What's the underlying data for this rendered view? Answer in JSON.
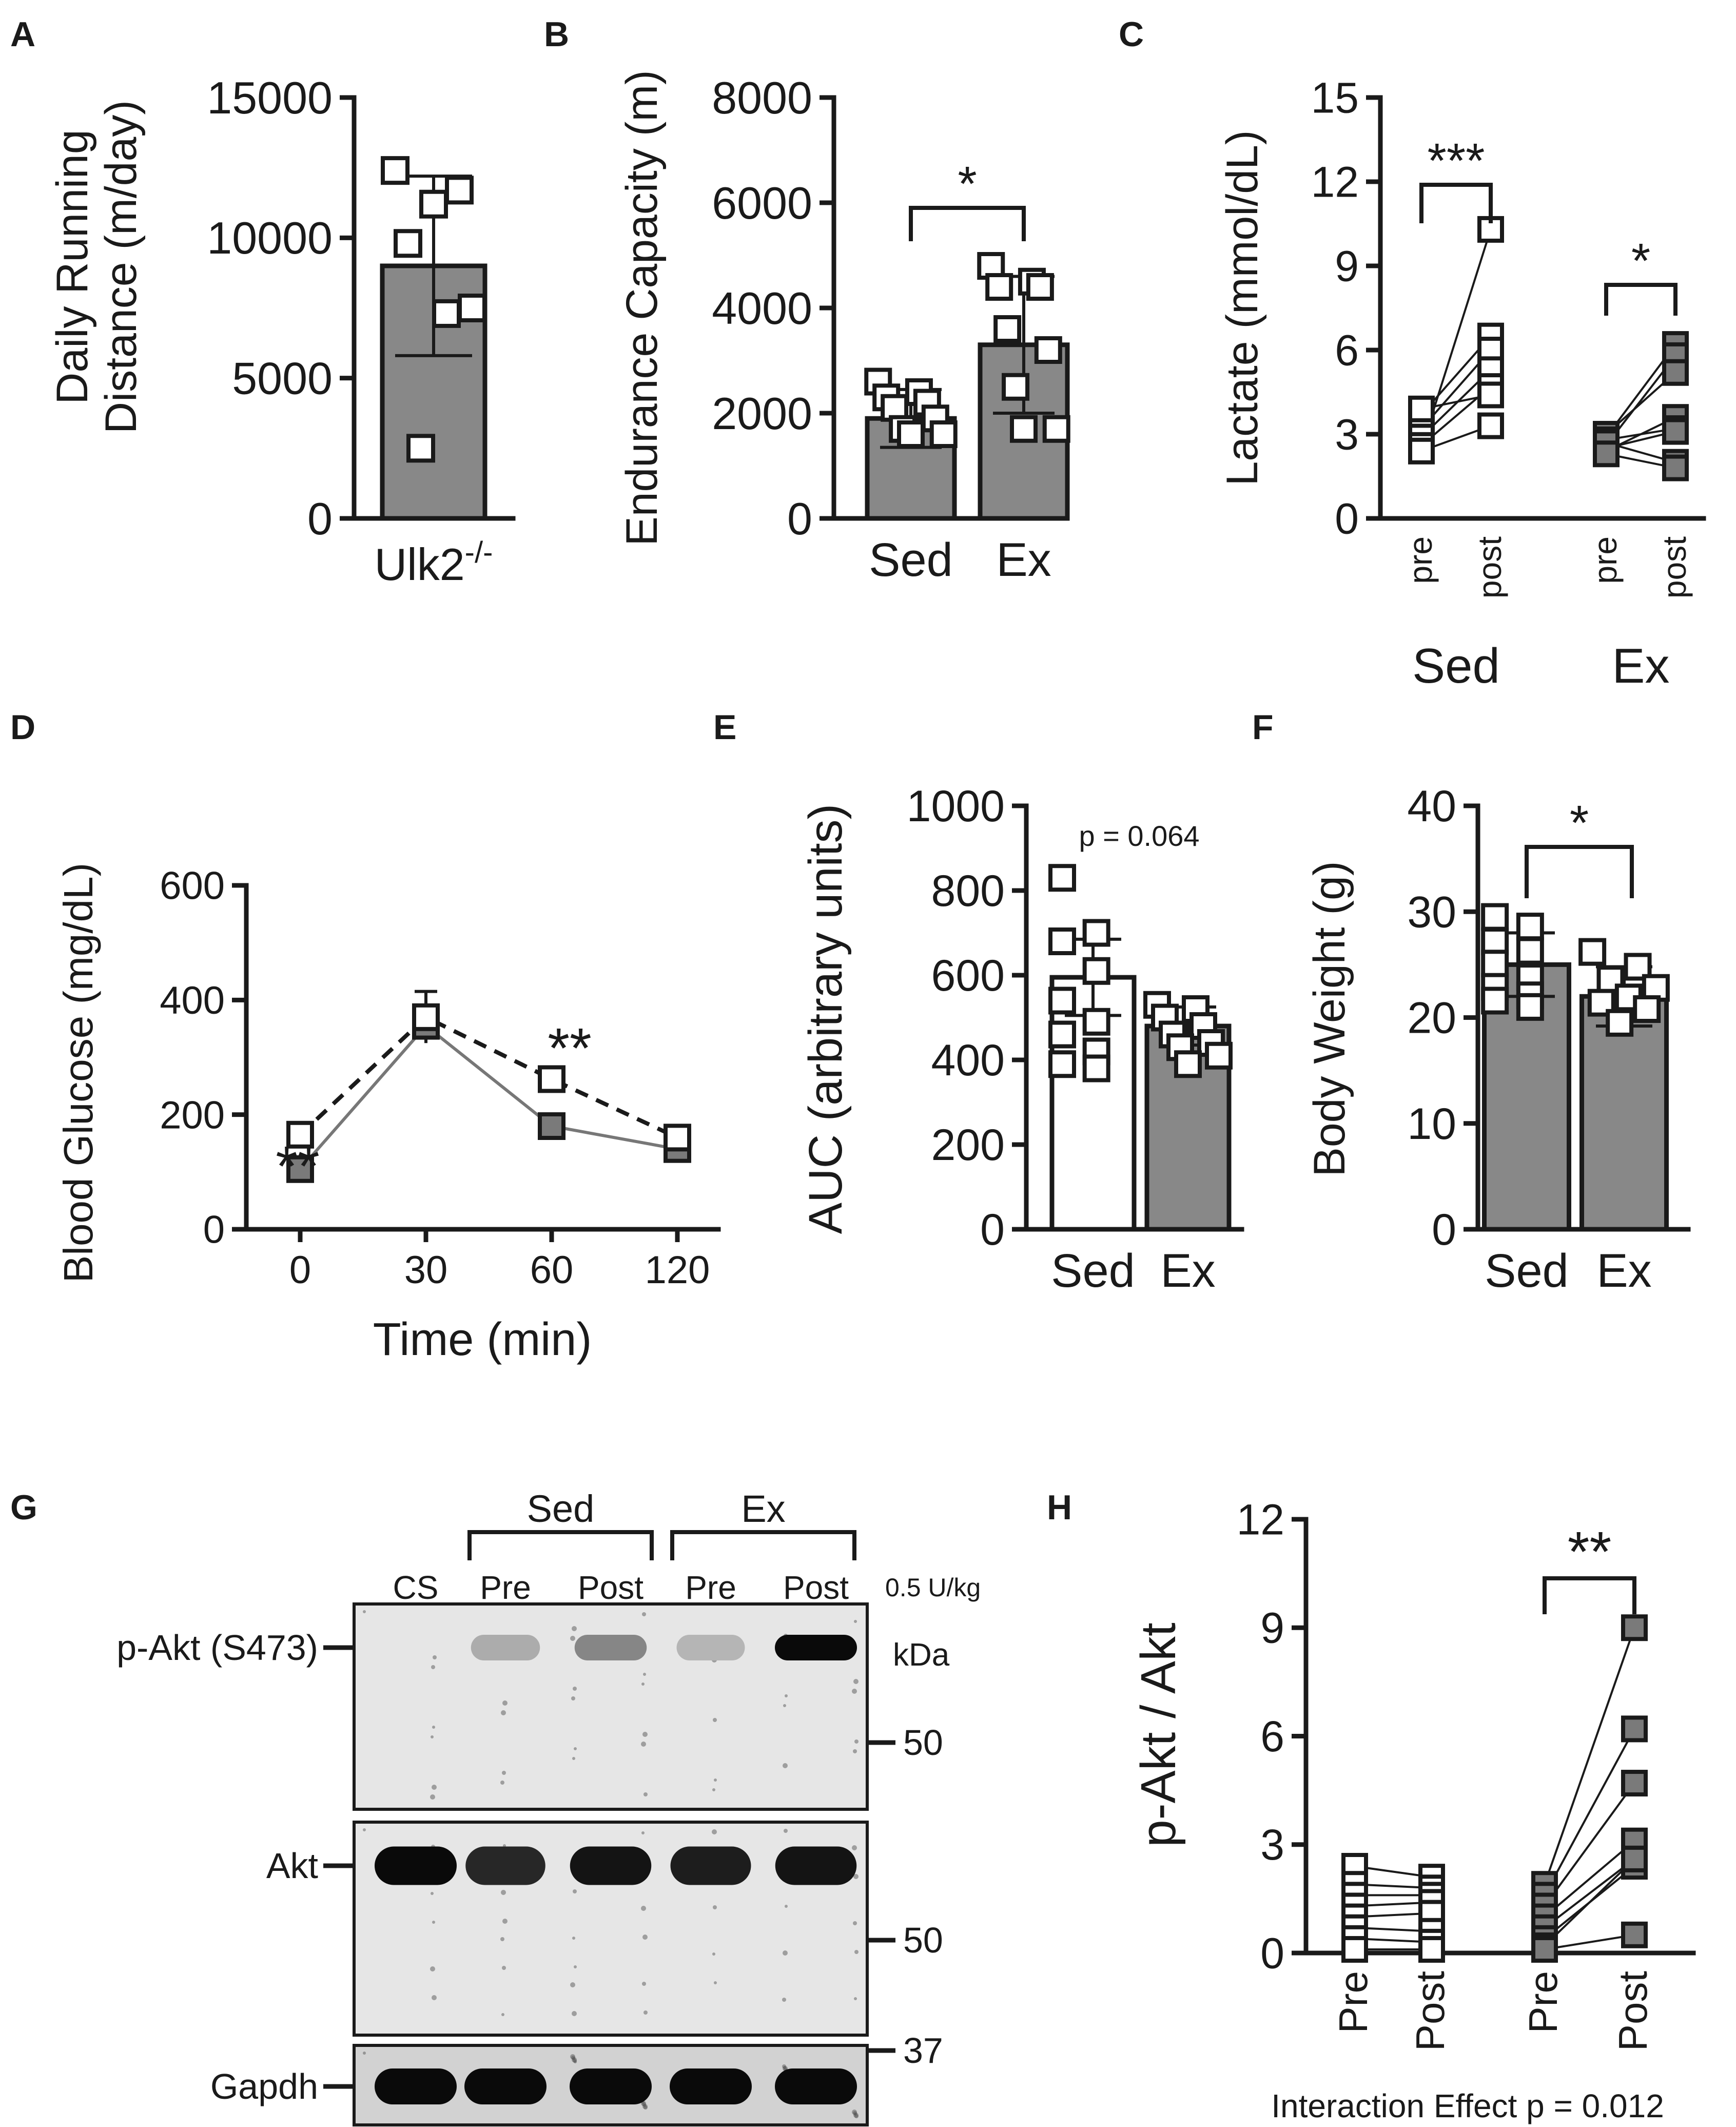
{
  "colors": {
    "ink": "#1a1a1a",
    "grey_bar": "#888888",
    "grey_point": "#7a7a7a",
    "white": "#ffffff",
    "blot_bg": "#d2d2d2"
  },
  "chart_data": [
    {
      "panel": "A",
      "type": "bar",
      "ylabel": "Daily Running Distance (m/day)",
      "ylabel_lines": [
        "Daily Running",
        "Distance (m/day)"
      ],
      "xlabel_base": "Ulk2",
      "xlabel_sup": "-/-",
      "ylim": [
        0,
        15000
      ],
      "yticks": [
        0,
        5000,
        10000,
        15000
      ],
      "categories": [
        "Ulk2-/-"
      ],
      "values": [
        9000
      ],
      "error": [
        3200
      ],
      "points": [
        [
          12400,
          11700,
          11200,
          9800,
          7500,
          7300,
          2500
        ]
      ]
    },
    {
      "panel": "B",
      "type": "bar",
      "ylabel": "Endurance Capacity (m)",
      "ylim": [
        0,
        8000
      ],
      "yticks": [
        0,
        2000,
        4000,
        6000,
        8000
      ],
      "categories": [
        "Sed",
        "Ex"
      ],
      "values": [
        1900,
        3300
      ],
      "error": [
        550,
        1300
      ],
      "points": [
        [
          2600,
          2400,
          2300,
          2200,
          2100,
          1900,
          1700,
          1600,
          1600
        ],
        [
          4800,
          4500,
          4400,
          4400,
          3600,
          3200,
          2500,
          1700,
          1700
        ]
      ],
      "significance": [
        {
          "pair": [
            "Sed",
            "Ex"
          ],
          "label": "*"
        }
      ]
    },
    {
      "panel": "C",
      "type": "scatter",
      "ylabel": "Lactate (mmol/dL)",
      "ylim": [
        0,
        15
      ],
      "yticks": [
        0,
        3,
        6,
        9,
        12,
        15
      ],
      "groups": [
        "Sed",
        "Ex"
      ],
      "timepoints": [
        "pre",
        "post"
      ],
      "pairs": {
        "Sed": [
          [
            2.5,
            10.3
          ],
          [
            3.7,
            6.5
          ],
          [
            3.2,
            6.0
          ],
          [
            2.9,
            5.3
          ],
          [
            2.6,
            4.7
          ],
          [
            3.9,
            4.4
          ],
          [
            2.4,
            3.3
          ]
        ],
        "Ex": [
          [
            2.9,
            6.2
          ],
          [
            2.6,
            5.8
          ],
          [
            3.0,
            5.2
          ],
          [
            2.4,
            3.6
          ],
          [
            2.8,
            3.2
          ],
          [
            2.5,
            3.1
          ],
          [
            2.7,
            2.0
          ],
          [
            2.3,
            1.8
          ]
        ]
      },
      "significance": [
        {
          "group": "Sed",
          "label": "***"
        },
        {
          "group": "Ex",
          "label": "*"
        }
      ]
    },
    {
      "panel": "D",
      "type": "line",
      "ylabel": "Blood Glucose (mg/dL)",
      "xlabel": "Time (min)",
      "ylim": [
        0,
        600
      ],
      "yticks": [
        0,
        200,
        400,
        600
      ],
      "categories": [
        "0",
        "30",
        "60",
        "120"
      ],
      "series": [
        {
          "style": "dashed",
          "fill": "white",
          "values": [
            165,
            370,
            262,
            160
          ],
          "error": [
            15,
            45,
            15,
            12
          ]
        },
        {
          "style": "solid",
          "fill": "grey",
          "values": [
            105,
            355,
            180,
            140
          ],
          "error": [
            15,
            30,
            12,
            12
          ]
        }
      ],
      "significance": [
        {
          "x": "0",
          "label": "**"
        },
        {
          "x": "60",
          "label": "**"
        }
      ]
    },
    {
      "panel": "E",
      "type": "bar",
      "ylabel": "AUC (arbitrary units)",
      "ylim": [
        0,
        1000
      ],
      "yticks": [
        0,
        200,
        400,
        600,
        800,
        1000
      ],
      "categories": [
        "Sed",
        "Ex"
      ],
      "values": [
        595,
        480
      ],
      "error": [
        90,
        45
      ],
      "points": [
        [
          830,
          700,
          680,
          610,
          540,
          490,
          460,
          420,
          390,
          380
        ],
        [
          530,
          520,
          500,
          480,
          460,
          440,
          430,
          410,
          390
        ]
      ],
      "annotation": "p = 0.064"
    },
    {
      "panel": "F",
      "type": "bar",
      "ylabel": "Body Weight (g)",
      "ylim": [
        0,
        40
      ],
      "yticks": [
        0,
        10,
        20,
        30,
        40
      ],
      "categories": [
        "Sed",
        "Ex"
      ],
      "values": [
        25,
        22
      ],
      "error": [
        3,
        2.8
      ],
      "points": [
        [
          29.5,
          28.6,
          27.2,
          26.3,
          25.1,
          23.8,
          22.9,
          22.1,
          21.6,
          21.0
        ],
        [
          26.2,
          24.8,
          23.6,
          22.8,
          21.9,
          21.4,
          20.8,
          19.5
        ]
      ],
      "significance": [
        {
          "pair": [
            "Sed",
            "Ex"
          ],
          "label": "*"
        }
      ]
    },
    {
      "panel": "H",
      "type": "scatter",
      "ylabel": "p-Akt / Akt",
      "ylim": [
        0,
        12
      ],
      "yticks": [
        0,
        3,
        6,
        9,
        12
      ],
      "groups": [
        "Sed",
        "Ex"
      ],
      "timepoints": [
        "Pre",
        "Post"
      ],
      "pairs": {
        "Sed": [
          [
            2.4,
            2.1
          ],
          [
            1.9,
            1.8
          ],
          [
            1.6,
            1.6
          ],
          [
            1.3,
            1.4
          ],
          [
            1.0,
            1.1
          ],
          [
            0.7,
            0.6
          ],
          [
            0.4,
            0.3
          ],
          [
            0.1,
            0.1
          ]
        ],
        "Ex": [
          [
            1.9,
            9.0
          ],
          [
            1.6,
            6.2
          ],
          [
            1.3,
            4.7
          ],
          [
            1.0,
            3.1
          ],
          [
            0.7,
            2.6
          ],
          [
            0.4,
            2.4
          ],
          [
            0.2,
            2.6
          ],
          [
            0.1,
            0.5
          ]
        ]
      },
      "significance": [
        {
          "group": "Ex",
          "label": "**"
        }
      ],
      "annotation": "Interaction Effect p = 0.012"
    }
  ],
  "panels": {
    "A": "A",
    "B": "B",
    "C": "C",
    "D": "D",
    "E": "E",
    "F": "F",
    "G": "G",
    "H": "H"
  },
  "blot": {
    "groups": [
      "Sed",
      "Ex"
    ],
    "lanes": [
      "CS",
      "Pre",
      "Post",
      "Pre",
      "Post"
    ],
    "dose": "0.5 U/kg",
    "kda_label": "kDa",
    "rows": [
      {
        "label": "p-Akt (S473)",
        "marker": "50",
        "intensity": [
          0.0,
          0.15,
          0.35,
          0.1,
          1.0
        ]
      },
      {
        "label": "Akt",
        "marker": "50",
        "intensity": [
          1.0,
          0.85,
          0.95,
          0.9,
          0.95
        ]
      },
      {
        "label": "Gapdh",
        "marker": "37",
        "intensity": [
          1.0,
          1.0,
          1.0,
          1.0,
          1.0
        ]
      }
    ]
  }
}
